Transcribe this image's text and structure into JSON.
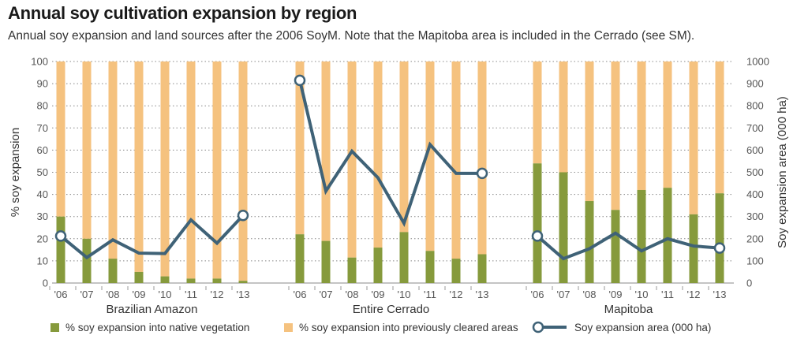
{
  "title": "Annual soy cultivation expansion by region",
  "subtitle": "Annual soy expansion and land sources after the 2006 SoyM. Note that the Mapitoba area is included in the Cerrado (see SM).",
  "colors": {
    "native": "#869a3c",
    "cleared": "#f5c27f",
    "line": "#3f6277",
    "grid": "#888888"
  },
  "legend": {
    "native": "% soy expansion into native vegetation",
    "cleared": "% soy expansion into previously cleared areas",
    "area": "Soy expansion area (000 ha)"
  },
  "chart_data": {
    "type": "bar",
    "stacked": true,
    "ylabel_left": "% soy expansion",
    "ylabel_right": "Soy expansion area (000 ha)",
    "ylim_left": [
      0,
      100
    ],
    "ylim_right": [
      0,
      1000
    ],
    "yticks_left": [
      "0",
      "10",
      "20",
      "30",
      "40",
      "50",
      "60",
      "70",
      "80",
      "90",
      "100"
    ],
    "yticks_right": [
      "0",
      "100",
      "200",
      "300",
      "400",
      "500",
      "600",
      "700",
      "800",
      "900",
      "1000"
    ],
    "categories": [
      "'06",
      "'07",
      "'08",
      "'09",
      "'10",
      "'11",
      "'12",
      "'13"
    ],
    "grid": "dotted horizontal",
    "groups": [
      {
        "name": "Brazilian Amazon",
        "native": [
          30,
          20,
          11,
          5,
          3,
          2,
          2,
          1
        ],
        "cleared": [
          70,
          80,
          89,
          95,
          97,
          98,
          98,
          99
        ],
        "area": [
          212,
          115,
          195,
          135,
          133,
          285,
          180,
          305
        ]
      },
      {
        "name": "Entire Cerrado",
        "native": [
          22,
          19,
          11.5,
          16,
          23,
          14.5,
          11,
          13
        ],
        "cleared": [
          78,
          81,
          88.5,
          84,
          77,
          85.5,
          89,
          87
        ],
        "area": [
          915,
          415,
          595,
          475,
          270,
          625,
          495,
          495
        ]
      },
      {
        "name": "Mapitoba",
        "native": [
          54,
          50,
          37,
          33,
          42,
          43,
          31,
          40.5
        ],
        "cleared": [
          46,
          50,
          63,
          67,
          58,
          57,
          69,
          59.5
        ],
        "area": [
          212,
          110,
          155,
          225,
          145,
          200,
          167,
          158
        ]
      }
    ]
  }
}
